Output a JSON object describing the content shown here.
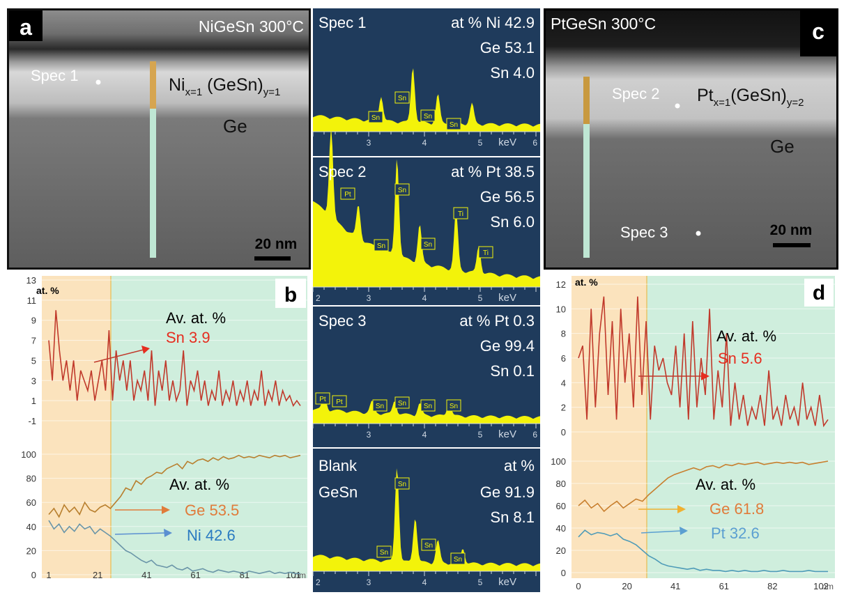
{
  "panels": {
    "a": {
      "letter": "a",
      "title": "NiGeSn 300°C",
      "spec_label": "Spec 1",
      "phase_base": "Ni",
      "phase_sub1": "x=1",
      "phase_mid": " (GeSn)",
      "phase_sub2": "y=1",
      "substrate": "Ge",
      "scale": "20 nm"
    },
    "c": {
      "letter": "c",
      "title": "PtGeSn 300°C",
      "spec2_label": "Spec 2",
      "spec3_label": "Spec 3",
      "phase_base": "Pt",
      "phase_sub1": "x=1",
      "phase_mid": "(GeSn)",
      "phase_sub2": "y=2",
      "substrate": "Ge",
      "scale": "20 nm"
    },
    "b": {
      "letter": "b",
      "ylabel": "at. %",
      "av_label1": "Av. at. %",
      "sn_avg": "Sn 3.9",
      "av_label2": "Av. at. %",
      "ge_avg": "Ge 53.5",
      "ni_avg": "Ni 42.6",
      "top_yticks": [
        "13",
        "11",
        "9",
        "7",
        "5",
        "3",
        "1",
        "-1"
      ],
      "bottom_yticks": [
        "100",
        "80",
        "60",
        "40",
        "20",
        "0"
      ],
      "xticks": [
        "1",
        "21",
        "41",
        "61",
        "81",
        "101"
      ],
      "xunit": "nm"
    },
    "d": {
      "letter": "d",
      "ylabel": "at. %",
      "av_label1": "Av. at. %",
      "sn_avg": "Sn 5.6",
      "av_label2": "Av. at. %",
      "ge_avg": "Ge 61.8",
      "pt_avg": "Pt 32.6",
      "top_yticks": [
        "12",
        "10",
        "8",
        "6",
        "4",
        "2",
        "0"
      ],
      "bottom_yticks": [
        "100",
        "80",
        "60",
        "40",
        "20",
        "0"
      ],
      "xticks": [
        "0",
        "20",
        "41",
        "61",
        "82",
        "102"
      ],
      "xunit": "nm"
    }
  },
  "spectra": [
    {
      "title": "Spec 1",
      "l1": "at % Ni 42.9",
      "l2": "Ge 53.1",
      "l3": "Sn 4.0",
      "peaks": [
        "Sn",
        "Sn",
        "Sn",
        "Sn"
      ],
      "xticks": [
        "3",
        "4",
        "5"
      ],
      "unit": "keV",
      "edge": "6"
    },
    {
      "title": "Spec 2",
      "l1": "at % Pt 38.5",
      "l2": "Ge 56.5",
      "l3": "Sn 6.0",
      "peaks": [
        "Pt",
        "Sn",
        "Sn",
        "Sn",
        "Ti",
        "Ti"
      ],
      "xticks": [
        "3",
        "4",
        "5"
      ],
      "unit": "keV",
      "edge": "2"
    },
    {
      "title": "Spec 3",
      "l1": "at % Pt  0.3",
      "l2": "Ge 99.4",
      "l3": "Sn  0.1",
      "peaks": [
        "Pt",
        "Pt",
        "Sn",
        "Sn",
        "Sn",
        "Sn"
      ],
      "xticks": [
        "3",
        "4",
        "5"
      ],
      "unit": "keV",
      "edge": "6"
    },
    {
      "title": "Blank",
      "title2": "GeSn",
      "l1": "at %",
      "l2": "Ge 91.9",
      "l3": "Sn 8.1",
      "peaks": [
        "Sn",
        "Sn",
        "Sn",
        "Sn"
      ],
      "xticks": [
        "3",
        "4",
        "5"
      ],
      "unit": "keV",
      "edge": "2"
    }
  ],
  "chart_data": [
    {
      "type": "line",
      "panel": "b-top",
      "x_range": [
        1,
        101
      ],
      "ylim": [
        -1,
        13
      ],
      "x_unit": "nm",
      "series": [
        {
          "name": "Sn",
          "values": [
            7,
            3,
            10,
            6,
            3,
            5,
            2,
            5,
            1,
            4,
            3,
            2,
            4,
            1,
            3,
            5,
            2,
            8,
            1,
            6,
            3,
            5,
            2,
            5,
            1,
            3,
            2,
            4,
            1,
            6,
            0.5,
            4,
            2,
            5,
            1,
            3,
            1,
            2,
            6,
            0.5,
            3,
            2,
            4,
            1,
            3,
            0.5,
            2,
            1,
            4,
            0.5,
            2,
            1,
            3,
            0.5,
            2,
            1,
            3,
            0.5,
            2,
            1,
            4,
            0.5,
            2,
            1,
            3,
            0.5,
            2,
            1,
            1.5,
            0.5,
            1,
            0.5
          ]
        }
      ],
      "legend_arrow": "Sn 3.9"
    },
    {
      "type": "line",
      "panel": "b-bottom",
      "x_range": [
        1,
        101
      ],
      "ylim": [
        0,
        100
      ],
      "x_unit": "nm",
      "series": [
        {
          "name": "Ge",
          "values": [
            50,
            55,
            48,
            58,
            52,
            56,
            50,
            60,
            54,
            52,
            56,
            58,
            55,
            60,
            65,
            72,
            70,
            78,
            75,
            80,
            82,
            85,
            84,
            88,
            90,
            92,
            88,
            94,
            92,
            95,
            96,
            94,
            97,
            95,
            98,
            96,
            97,
            99,
            97,
            98,
            97,
            99,
            98,
            97,
            99,
            98,
            99,
            97,
            98,
            99
          ]
        },
        {
          "name": "Ni",
          "values": [
            45,
            38,
            42,
            35,
            40,
            36,
            42,
            38,
            40,
            34,
            38,
            35,
            32,
            28,
            24,
            20,
            18,
            15,
            12,
            10,
            12,
            8,
            7,
            6,
            8,
            5,
            4,
            6,
            3,
            4,
            5,
            3,
            2,
            4,
            3,
            2,
            3,
            2,
            1,
            3,
            2,
            1,
            2,
            3,
            1,
            2,
            1,
            2,
            1,
            1
          ]
        }
      ]
    },
    {
      "type": "line",
      "panel": "d-top",
      "x_range": [
        0,
        102
      ],
      "ylim": [
        0,
        12
      ],
      "x_unit": "nm",
      "series": [
        {
          "name": "Sn",
          "values": [
            6,
            7,
            1,
            10,
            2,
            8,
            11,
            3,
            9,
            1,
            10,
            4,
            8,
            2,
            11,
            3,
            9,
            1,
            7,
            5,
            6,
            4,
            3,
            7,
            2,
            8,
            1,
            9,
            2,
            6,
            3,
            10,
            1,
            5,
            2,
            8,
            0.5,
            4,
            1,
            3,
            0.5,
            2,
            1,
            3,
            0.5,
            5,
            1,
            2,
            0.5,
            3,
            1,
            2,
            0.5,
            4,
            1,
            2,
            0.5,
            3,
            0.5,
            1
          ]
        }
      ],
      "legend_arrow": "Sn 5.6"
    },
    {
      "type": "line",
      "panel": "d-bottom",
      "x_range": [
        0,
        102
      ],
      "ylim": [
        0,
        100
      ],
      "x_unit": "nm",
      "series": [
        {
          "name": "Ge",
          "values": [
            60,
            65,
            58,
            62,
            55,
            60,
            64,
            58,
            62,
            66,
            64,
            70,
            75,
            80,
            85,
            88,
            90,
            92,
            94,
            92,
            95,
            96,
            94,
            97,
            96,
            98,
            97,
            98,
            99,
            97,
            98,
            99,
            98,
            99,
            98,
            99,
            97,
            98,
            99,
            100
          ]
        },
        {
          "name": "Pt",
          "values": [
            32,
            38,
            34,
            36,
            35,
            33,
            35,
            30,
            28,
            25,
            20,
            15,
            12,
            8,
            6,
            5,
            4,
            3,
            4,
            2,
            3,
            2,
            2,
            1,
            2,
            1,
            2,
            1,
            1,
            2,
            1,
            1,
            2,
            1,
            1,
            1,
            2,
            1,
            1,
            1
          ]
        }
      ]
    }
  ],
  "colors": {
    "yellow_zone": "#fbe3bd",
    "green_zone": "#cfeedd",
    "sn_line": "#c0392b",
    "ge_line": "#b87f2e",
    "ni_line": "#5b8fa8",
    "pt_line": "#4e9bb8",
    "spec_bg": "#1f3b5c",
    "spec_fill": "#f3f30a"
  }
}
